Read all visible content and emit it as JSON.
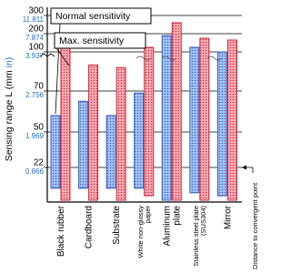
{
  "chart_data": {
    "type": "range-bar",
    "y_label": "Sensing range L",
    "y_units": [
      "(mm",
      "in)"
    ],
    "annotation": "Distance to convergent point",
    "categories": [
      [
        "Black rubber"
      ],
      [
        "Cardboard"
      ],
      [
        "Substrate"
      ],
      [
        "White non-glossy",
        "paper"
      ],
      [
        "Aluminum",
        "plate"
      ],
      [
        "Stainless steel plate",
        "(SUS304)"
      ],
      [
        "Mirror"
      ]
    ],
    "series": [
      {
        "name": "Normal sensitivity",
        "color": "#2f5fc4",
        "values": [
          [
            8,
            58
          ],
          [
            8,
            65
          ],
          [
            8,
            58
          ],
          [
            8,
            69
          ],
          [
            0,
            190
          ],
          [
            5,
            125
          ],
          [
            3,
            100
          ]
        ]
      },
      {
        "name": "Max. sensitivity",
        "color": "#d0283a",
        "values": [
          [
            0,
            125
          ],
          [
            0,
            90
          ],
          [
            0,
            88
          ],
          [
            3,
            125
          ],
          [
            0,
            260
          ],
          [
            0,
            175
          ],
          [
            0,
            165
          ]
        ]
      }
    ],
    "ylim": [
      0,
      300
    ],
    "yticks": [
      300,
      200,
      100,
      70,
      50,
      22
    ],
    "inch_labels": [
      11.811,
      7.874,
      3.937,
      2.756,
      1.969,
      0.866
    ],
    "grid": true
  }
}
